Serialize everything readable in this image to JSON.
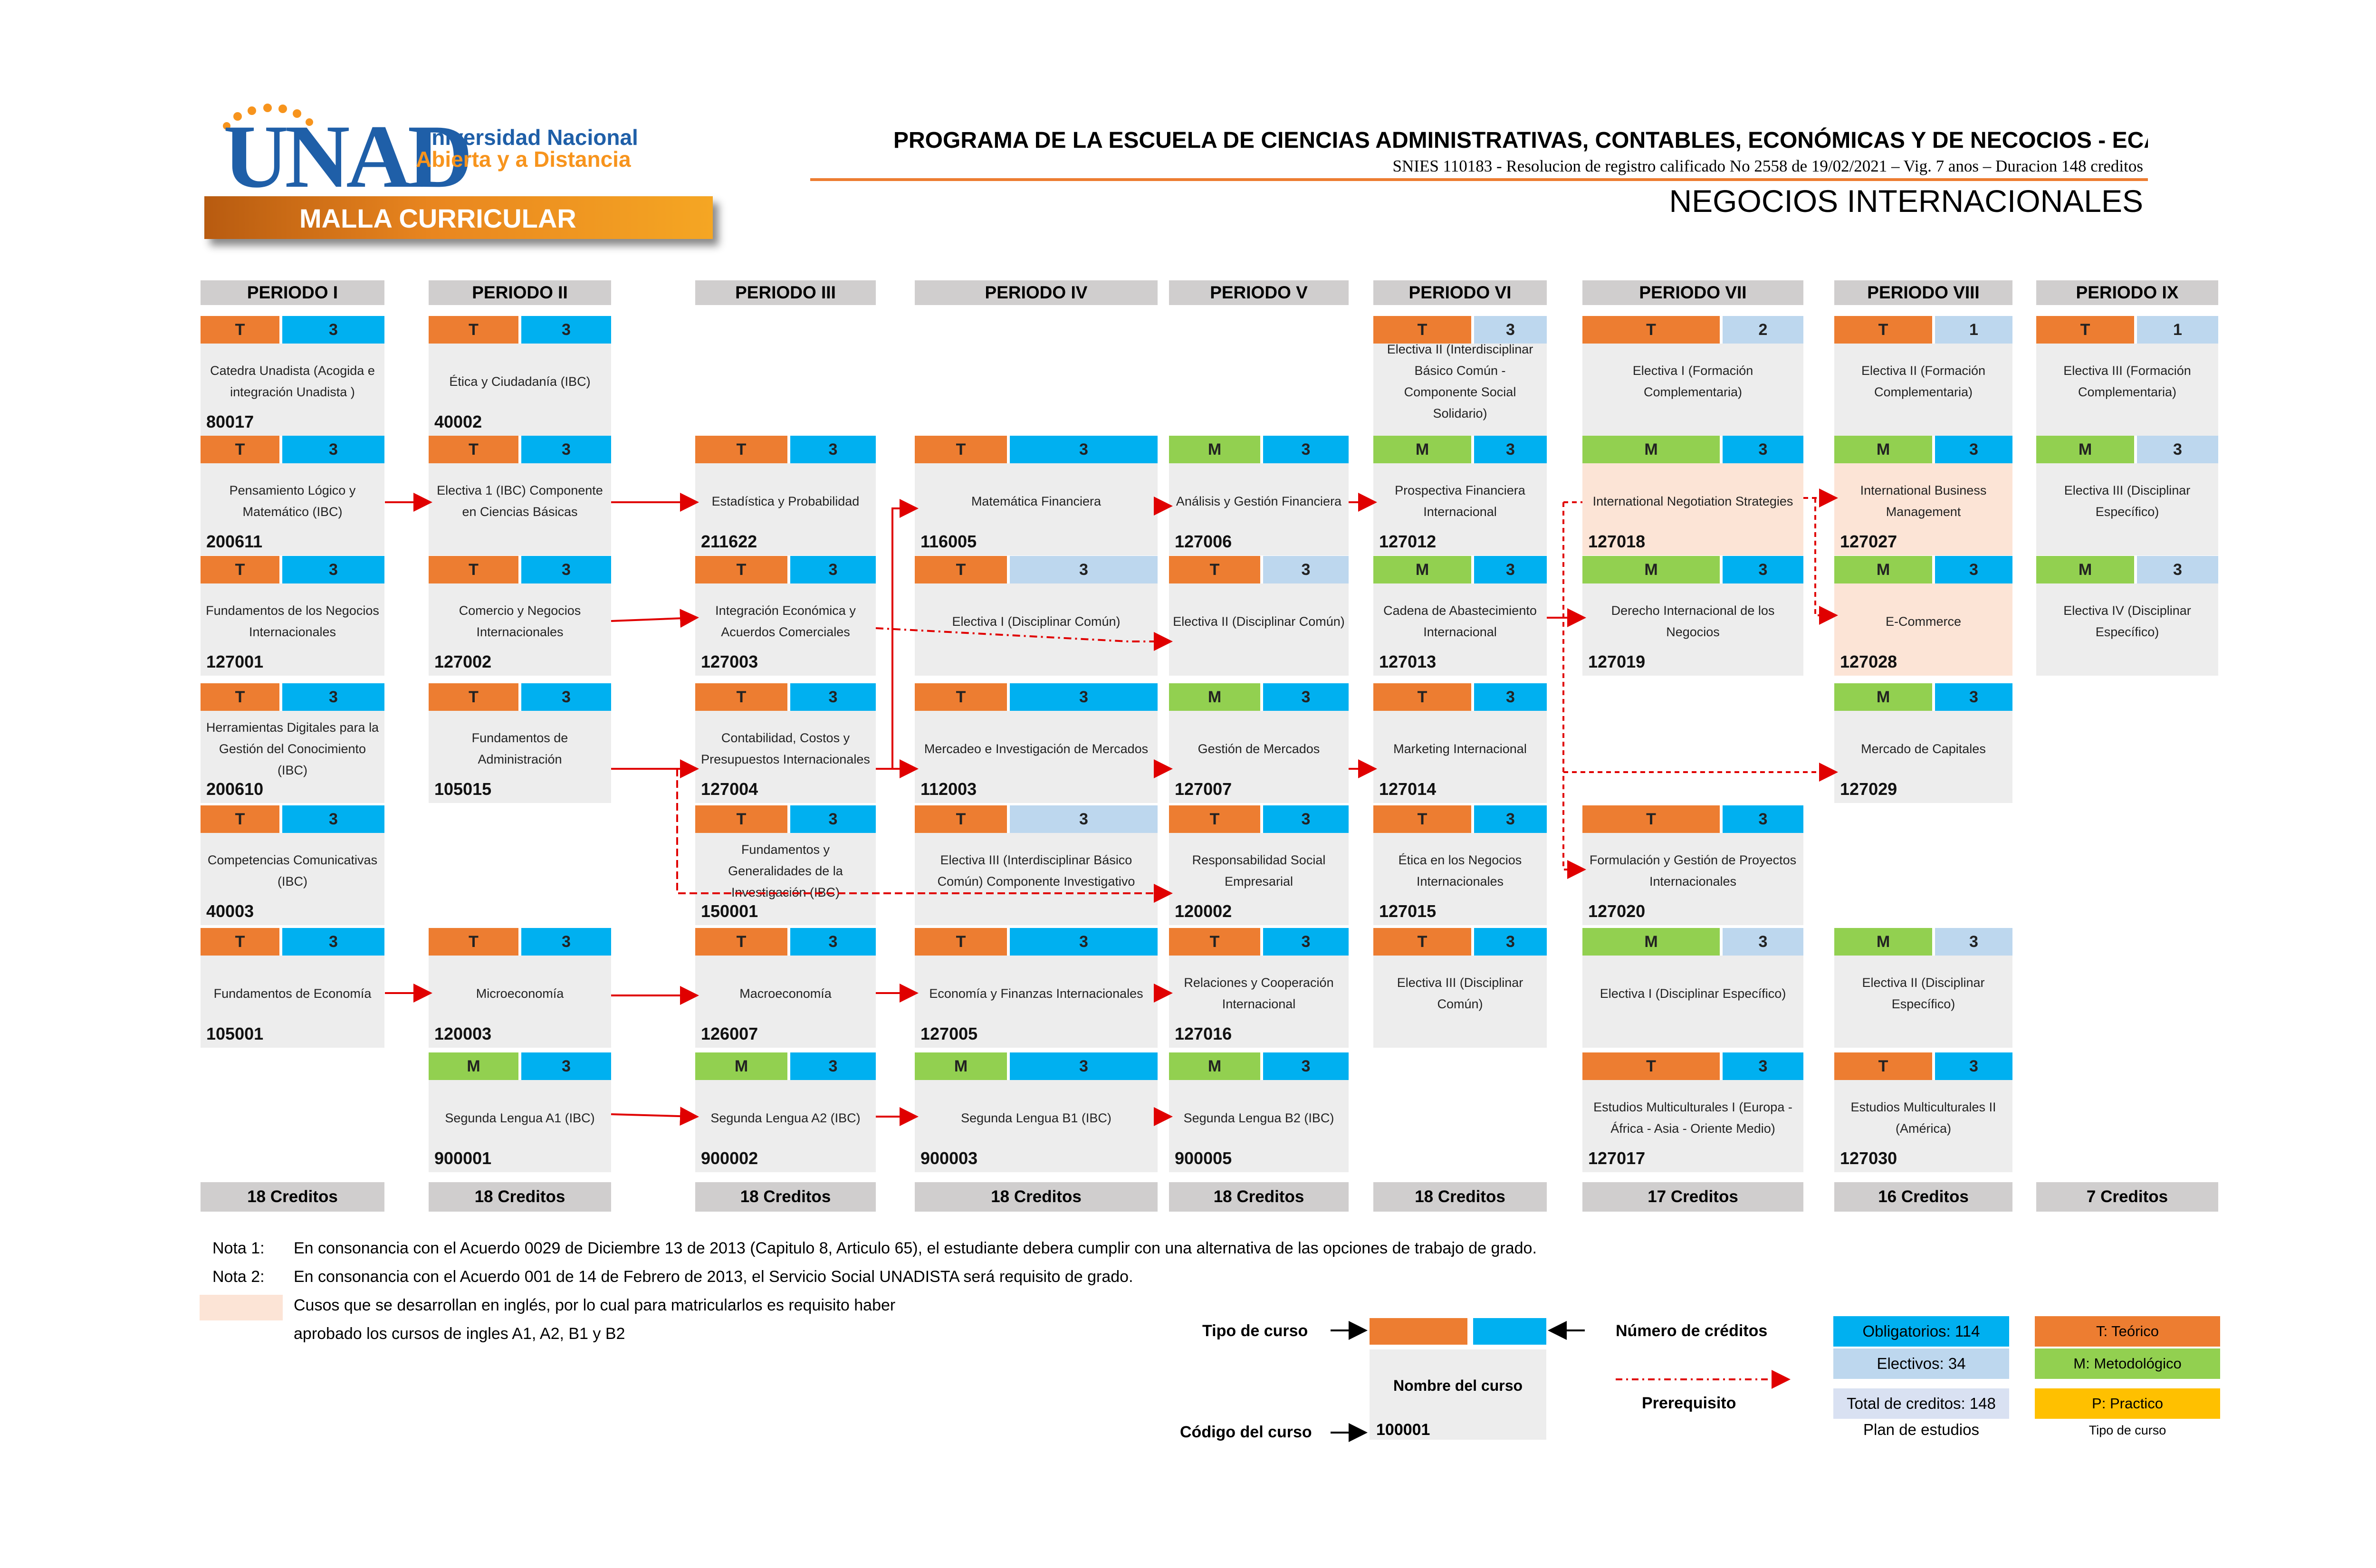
{
  "header": {
    "logo_text": "UNAD",
    "university_line1": "Universidad Nacional",
    "university_line2": "Abierta y a Distancia",
    "banner": "MALLA CURRICULAR",
    "program_title": "PROGRAMA DE LA ESCUELA DE CIENCIAS ADMINISTRATIVAS, CONTABLES, ECONÓMICAS Y DE NECOCIOS - ECACEN",
    "snies_line": "SNIES 110183 - Resolucion de registro calificado No 2558 de 19/02/2021 – Vig. 7 anos – Duracion 148 creditos",
    "program_name": "NEGOCIOS INTERNACIONALES"
  },
  "colors": {
    "teorico": "#ed7d31",
    "metodologico": "#92d050",
    "practico": "#ffc000",
    "obligatorio": "#00b0f0",
    "electivo": "#bdd7ee",
    "english_course": "#fce4d6",
    "prerequisite_arrow": "#e00000"
  },
  "periods": [
    {
      "label": "PERIODO I",
      "credits": "18 Creditos"
    },
    {
      "label": "PERIODO II",
      "credits": "18 Creditos"
    },
    {
      "label": "PERIODO III",
      "credits": "18 Creditos"
    },
    {
      "label": "PERIODO IV",
      "credits": "18 Creditos"
    },
    {
      "label": "PERIODO V",
      "credits": "18 Creditos"
    },
    {
      "label": "PERIODO VI",
      "credits": "18 Creditos"
    },
    {
      "label": "PERIODO VII",
      "credits": "17 Creditos"
    },
    {
      "label": "PERIODO VIII",
      "credits": "16 Creditos"
    },
    {
      "label": "PERIODO IX",
      "credits": "7 Creditos"
    }
  ],
  "courses": [
    {
      "col": 0,
      "row": 0,
      "type": "T",
      "credits": "3",
      "kind": "oblig",
      "name": "Catedra Unadista (Acogida e integración Unadista )",
      "code": "80017"
    },
    {
      "col": 0,
      "row": 1,
      "type": "T",
      "credits": "3",
      "kind": "oblig",
      "name": "Pensamiento Lógico y Matemático (IBC)",
      "code": "200611"
    },
    {
      "col": 0,
      "row": 2,
      "type": "T",
      "credits": "3",
      "kind": "oblig",
      "name": "Fundamentos de los Negocios Internacionales",
      "code": "127001"
    },
    {
      "col": 0,
      "row": 3,
      "type": "T",
      "credits": "3",
      "kind": "oblig",
      "name": "Herramientas Digitales para la Gestión del Conocimiento (IBC)",
      "code": "200610"
    },
    {
      "col": 0,
      "row": 4,
      "type": "T",
      "credits": "3",
      "kind": "oblig",
      "name": "Competencias Comunicativas (IBC)",
      "code": "40003"
    },
    {
      "col": 0,
      "row": 5,
      "type": "T",
      "credits": "3",
      "kind": "oblig",
      "name": "Fundamentos de Economía",
      "code": "105001"
    },
    {
      "col": 1,
      "row": 0,
      "type": "T",
      "credits": "3",
      "kind": "oblig",
      "name": "Ética y Ciudadanía (IBC)",
      "code": "40002"
    },
    {
      "col": 1,
      "row": 1,
      "type": "T",
      "credits": "3",
      "kind": "oblig",
      "name": "Electiva 1 (IBC) Componente en Ciencias Básicas",
      "code": ""
    },
    {
      "col": 1,
      "row": 2,
      "type": "T",
      "credits": "3",
      "kind": "oblig",
      "name": "Comercio y Negocios Internacionales",
      "code": "127002"
    },
    {
      "col": 1,
      "row": 3,
      "type": "T",
      "credits": "3",
      "kind": "oblig",
      "name": "Fundamentos de Administración",
      "code": "105015"
    },
    {
      "col": 1,
      "row": 5,
      "type": "T",
      "credits": "3",
      "kind": "oblig",
      "name": "Microeconomía",
      "code": "120003"
    },
    {
      "col": 1,
      "row": 6,
      "type": "M",
      "credits": "3",
      "kind": "oblig",
      "name": "Segunda Lengua A1 (IBC)",
      "code": "900001"
    },
    {
      "col": 2,
      "row": 1,
      "type": "T",
      "credits": "3",
      "kind": "oblig",
      "name": "Estadística y Probabilidad",
      "code": "211622"
    },
    {
      "col": 2,
      "row": 2,
      "type": "T",
      "credits": "3",
      "kind": "oblig",
      "name": "Integración Económica y Acuerdos Comerciales",
      "code": "127003"
    },
    {
      "col": 2,
      "row": 3,
      "type": "T",
      "credits": "3",
      "kind": "oblig",
      "name": "Contabilidad, Costos y Presupuestos Internacionales",
      "code": "127004"
    },
    {
      "col": 2,
      "row": 4,
      "type": "T",
      "credits": "3",
      "kind": "oblig",
      "name": "Fundamentos y Generalidades de la Investigación (IBC)",
      "code": "150001"
    },
    {
      "col": 2,
      "row": 5,
      "type": "T",
      "credits": "3",
      "kind": "oblig",
      "name": "Macroeconomía",
      "code": "126007"
    },
    {
      "col": 2,
      "row": 6,
      "type": "M",
      "credits": "3",
      "kind": "oblig",
      "name": "Segunda Lengua A2 (IBC)",
      "code": "900002"
    },
    {
      "col": 3,
      "row": 1,
      "type": "T",
      "credits": "3",
      "kind": "oblig",
      "name": "Matemática Financiera",
      "code": "116005"
    },
    {
      "col": 3,
      "row": 2,
      "type": "T",
      "credits": "3",
      "kind": "elect",
      "name": "Electiva I (Disciplinar Común)",
      "code": ""
    },
    {
      "col": 3,
      "row": 3,
      "type": "T",
      "credits": "3",
      "kind": "oblig",
      "name": "Mercadeo e Investigación de Mercados",
      "code": "112003"
    },
    {
      "col": 3,
      "row": 4,
      "type": "T",
      "credits": "3",
      "kind": "elect",
      "name": "Electiva III (Interdisciplinar Básico Común) Componente Investigativo",
      "code": ""
    },
    {
      "col": 3,
      "row": 5,
      "type": "T",
      "credits": "3",
      "kind": "oblig",
      "name": "Economía y Finanzas Internacionales",
      "code": "127005"
    },
    {
      "col": 3,
      "row": 6,
      "type": "M",
      "credits": "3",
      "kind": "oblig",
      "name": "Segunda Lengua B1 (IBC)",
      "code": "900003"
    },
    {
      "col": 4,
      "row": 1,
      "type": "M",
      "credits": "3",
      "kind": "oblig",
      "name": "Análisis y Gestión Financiera",
      "code": "127006"
    },
    {
      "col": 4,
      "row": 2,
      "type": "T",
      "credits": "3",
      "kind": "elect",
      "name": "Electiva II (Disciplinar Común)",
      "code": ""
    },
    {
      "col": 4,
      "row": 3,
      "type": "M",
      "credits": "3",
      "kind": "oblig",
      "name": "Gestión de Mercados",
      "code": "127007"
    },
    {
      "col": 4,
      "row": 4,
      "type": "T",
      "credits": "3",
      "kind": "oblig",
      "name": "Responsabilidad Social Empresarial",
      "code": "120002"
    },
    {
      "col": 4,
      "row": 5,
      "type": "T",
      "credits": "3",
      "kind": "oblig",
      "name": "Relaciones y Cooperación Internacional",
      "code": "127016"
    },
    {
      "col": 4,
      "row": 6,
      "type": "M",
      "credits": "3",
      "kind": "oblig",
      "name": "Segunda Lengua B2 (IBC)",
      "code": "900005"
    },
    {
      "col": 5,
      "row": 0,
      "type": "T",
      "credits": "3",
      "kind": "elect",
      "name": "Electiva II (Interdisciplinar Básico Común - Componente Social Solidario)",
      "code": ""
    },
    {
      "col": 5,
      "row": 1,
      "type": "M",
      "credits": "3",
      "kind": "oblig",
      "name": "Prospectiva Financiera Internacional",
      "code": "127012"
    },
    {
      "col": 5,
      "row": 2,
      "type": "M",
      "credits": "3",
      "kind": "oblig",
      "name": "Cadena de Abastecimiento Internacional",
      "code": "127013"
    },
    {
      "col": 5,
      "row": 3,
      "type": "T",
      "credits": "3",
      "kind": "oblig",
      "name": "Marketing Internacional",
      "code": "127014"
    },
    {
      "col": 5,
      "row": 4,
      "type": "T",
      "credits": "3",
      "kind": "oblig",
      "name": "Ética en los Negocios Internacionales",
      "code": "127015"
    },
    {
      "col": 5,
      "row": 5,
      "type": "T",
      "credits": "3",
      "kind": "oblig",
      "name": "Electiva III (Disciplinar Común)",
      "code": ""
    },
    {
      "col": 6,
      "row": 0,
      "type": "T",
      "credits": "2",
      "kind": "elect",
      "name": "Electiva I (Formación Complementaria)",
      "code": ""
    },
    {
      "col": 6,
      "row": 1,
      "type": "M",
      "credits": "3",
      "kind": "oblig",
      "name": "International Negotiation Strategies",
      "code": "127018",
      "pink": true
    },
    {
      "col": 6,
      "row": 2,
      "type": "M",
      "credits": "3",
      "kind": "oblig",
      "name": "Derecho Internacional de los Negocios",
      "code": "127019"
    },
    {
      "col": 6,
      "row": 4,
      "type": "T",
      "credits": "3",
      "kind": "oblig",
      "name": "Formulación y Gestión de Proyectos Internacionales",
      "code": "127020"
    },
    {
      "col": 6,
      "row": 5,
      "type": "M",
      "credits": "3",
      "kind": "elect",
      "name": "Electiva I (Disciplinar Específico)",
      "code": ""
    },
    {
      "col": 6,
      "row": 6,
      "type": "T",
      "credits": "3",
      "kind": "oblig",
      "name": "Estudios Multiculturales I (Europa - África - Asia - Oriente Medio)",
      "code": "127017"
    },
    {
      "col": 7,
      "row": 0,
      "type": "T",
      "credits": "1",
      "kind": "elect",
      "name": "Electiva II (Formación Complementaria)",
      "code": ""
    },
    {
      "col": 7,
      "row": 1,
      "type": "M",
      "credits": "3",
      "kind": "oblig",
      "name": "International Business Management",
      "code": "127027",
      "pink": true
    },
    {
      "col": 7,
      "row": 2,
      "type": "M",
      "credits": "3",
      "kind": "oblig",
      "name": "E-Commerce",
      "code": "127028",
      "pink": true
    },
    {
      "col": 7,
      "row": 3,
      "type": "M",
      "credits": "3",
      "kind": "oblig",
      "name": "Mercado de Capitales",
      "code": "127029"
    },
    {
      "col": 7,
      "row": 5,
      "type": "M",
      "credits": "3",
      "kind": "elect",
      "name": "Electiva II (Disciplinar Específico)",
      "code": ""
    },
    {
      "col": 7,
      "row": 6,
      "type": "T",
      "credits": "3",
      "kind": "oblig",
      "name": "Estudios Multiculturales II (América)",
      "code": "127030"
    },
    {
      "col": 8,
      "row": 0,
      "type": "T",
      "credits": "1",
      "kind": "elect",
      "name": "Electiva III (Formación Complementaria)",
      "code": ""
    },
    {
      "col": 8,
      "row": 1,
      "type": "M",
      "credits": "3",
      "kind": "elect",
      "name": "Electiva III (Disciplinar Específico)",
      "code": ""
    },
    {
      "col": 8,
      "row": 2,
      "type": "M",
      "credits": "3",
      "kind": "elect",
      "name": "Electiva IV (Disciplinar Específico)",
      "code": ""
    }
  ],
  "notes": {
    "nota1_label": "Nota 1:",
    "nota1_text": "En consonancia con el Acuerdo 0029 de Diciembre 13 de 2013 (Capitulo 8, Articulo 65), el estudiante debera cumplir con una alternativa de las opciones de trabajo de grado.",
    "nota2_label": "Nota 2:",
    "nota2_text": "En consonancia con el Acuerdo 001 de 14 de Febrero de 2013, el Servicio Social UNADISTA será requisito de grado.",
    "english_line1": "Cusos que se desarrollan en inglés, por lo cual para matricularlos es requisito haber",
    "english_line2": "aprobado los cursos de ingles A1, A2, B1 y B2"
  },
  "legend": {
    "tipo_curso": "Tipo de curso",
    "numero_creditos": "Número de créditos",
    "nombre_curso": "Nombre del curso",
    "codigo_curso": "Código del curso",
    "codigo_ejemplo": "100001",
    "prerequisito": "Prerequisito",
    "obligatorios": "Obligatorios: 114",
    "electivos": "Electivos: 34",
    "total": "Total de creditos: 148",
    "plan": "Plan de estudios",
    "teorico": "T: Teórico",
    "metodologico": "M: Metodológico",
    "practico": "P: Practico",
    "tipo_curso_small": "Tipo de curso"
  }
}
